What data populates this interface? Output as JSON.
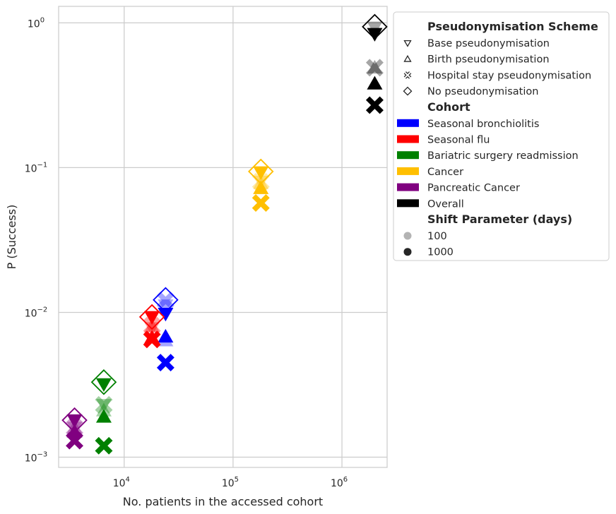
{
  "chart_data": {
    "type": "scatter",
    "title": "",
    "xlabel": "No. patients in the accessed cohort",
    "ylabel": "P (Success)",
    "x_scale": "log",
    "y_scale": "log",
    "xlim": [
      2500,
      2600000
    ],
    "ylim": [
      0.00085,
      1.3
    ],
    "grid": true,
    "x_ticks": [
      {
        "value": 10000,
        "base": "10",
        "exp": "4"
      },
      {
        "value": 100000,
        "base": "10",
        "exp": "5"
      },
      {
        "value": 1000000,
        "base": "10",
        "exp": "6"
      }
    ],
    "y_ticks": [
      {
        "value": 0.001,
        "base": "10",
        "exp": "−3"
      },
      {
        "value": 0.01,
        "base": "10",
        "exp": "−2"
      },
      {
        "value": 0.1,
        "base": "10",
        "exp": "−1"
      },
      {
        "value": 1,
        "base": "10",
        "exp": "0"
      }
    ],
    "legend_placement": "outside right",
    "legend": {
      "scheme_title": "Pseudonymisation Scheme",
      "schemes": [
        {
          "key": "base",
          "label": "Base pseudonymisation",
          "marker": "triangle-down"
        },
        {
          "key": "birth",
          "label": "Birth pseudonymisation",
          "marker": "triangle-up"
        },
        {
          "key": "hospital",
          "label": "Hospital stay pseudonymisation",
          "marker": "x"
        },
        {
          "key": "none",
          "label": "No pseudonymisation",
          "marker": "diamond"
        }
      ],
      "cohort_title": "Cohort",
      "shift_title": "Shift Parameter (days)",
      "shifts": [
        {
          "label": "100",
          "opacity": 0.35
        },
        {
          "label": "1000",
          "opacity": 1.0
        }
      ]
    },
    "series": [
      {
        "name": "Seasonal bronchiolitis",
        "color": "#0000ff",
        "points": [
          {
            "scheme": "none",
            "x": 24000,
            "y": 0.0122
          },
          {
            "scheme": "base",
            "shift": "1000",
            "x": 24000,
            "y": 0.0098
          },
          {
            "scheme": "base",
            "shift": "100",
            "x": 24000,
            "y": 0.0112
          },
          {
            "scheme": "birth",
            "shift": "1000",
            "x": 24000,
            "y": 0.0068
          },
          {
            "scheme": "birth",
            "shift": "100",
            "x": 24000,
            "y": 0.0064
          },
          {
            "scheme": "hospital",
            "shift": "1000",
            "x": 24000,
            "y": 0.0045
          },
          {
            "scheme": "hospital",
            "shift": "100",
            "x": 24000,
            "y": 0.0121
          }
        ]
      },
      {
        "name": "Seasonal flu",
        "color": "#ff0000",
        "points": [
          {
            "scheme": "none",
            "x": 18000,
            "y": 0.0093
          },
          {
            "scheme": "base",
            "shift": "1000",
            "x": 18000,
            "y": 0.0093
          },
          {
            "scheme": "base",
            "shift": "100",
            "x": 18000,
            "y": 0.0078
          },
          {
            "scheme": "birth",
            "shift": "1000",
            "x": 18000,
            "y": 0.0067
          },
          {
            "scheme": "birth",
            "shift": "100",
            "x": 18000,
            "y": 0.008
          },
          {
            "scheme": "hospital",
            "shift": "1000",
            "x": 18000,
            "y": 0.0065
          },
          {
            "scheme": "hospital",
            "shift": "100",
            "x": 18000,
            "y": 0.0081
          }
        ]
      },
      {
        "name": "Bariatric surgery readmission",
        "color": "#008000",
        "points": [
          {
            "scheme": "none",
            "x": 6500,
            "y": 0.0033
          },
          {
            "scheme": "base",
            "shift": "1000",
            "x": 6500,
            "y": 0.0032
          },
          {
            "scheme": "base",
            "shift": "100",
            "x": 6500,
            "y": 0.0023
          },
          {
            "scheme": "birth",
            "shift": "1000",
            "x": 6500,
            "y": 0.0019
          },
          {
            "scheme": "birth",
            "shift": "100",
            "x": 6500,
            "y": 0.0021
          },
          {
            "scheme": "hospital",
            "shift": "1000",
            "x": 6500,
            "y": 0.0012
          },
          {
            "scheme": "hospital",
            "shift": "100",
            "x": 6500,
            "y": 0.0023
          }
        ]
      },
      {
        "name": "Cancer",
        "color": "#ffbf00",
        "points": [
          {
            "scheme": "none",
            "x": 180000,
            "y": 0.094
          },
          {
            "scheme": "base",
            "shift": "1000",
            "x": 180000,
            "y": 0.093
          },
          {
            "scheme": "base",
            "shift": "100",
            "x": 180000,
            "y": 0.08
          },
          {
            "scheme": "birth",
            "shift": "1000",
            "x": 180000,
            "y": 0.072
          },
          {
            "scheme": "birth",
            "shift": "100",
            "x": 180000,
            "y": 0.078
          },
          {
            "scheme": "hospital",
            "shift": "1000",
            "x": 180000,
            "y": 0.057
          },
          {
            "scheme": "hospital",
            "shift": "100",
            "x": 180000,
            "y": 0.08
          }
        ]
      },
      {
        "name": "Pancreatic Cancer",
        "color": "#800080",
        "points": [
          {
            "scheme": "none",
            "x": 3500,
            "y": 0.0018
          },
          {
            "scheme": "base",
            "shift": "1000",
            "x": 3500,
            "y": 0.0018
          },
          {
            "scheme": "base",
            "shift": "100",
            "x": 3500,
            "y": 0.0016
          },
          {
            "scheme": "birth",
            "shift": "1000",
            "x": 3500,
            "y": 0.0015
          },
          {
            "scheme": "birth",
            "shift": "100",
            "x": 3500,
            "y": 0.0016
          },
          {
            "scheme": "hospital",
            "shift": "1000",
            "x": 3500,
            "y": 0.0013
          },
          {
            "scheme": "hospital",
            "shift": "100",
            "x": 3500,
            "y": 0.0016
          }
        ]
      },
      {
        "name": "Overall",
        "color": "#000000",
        "points": [
          {
            "scheme": "none",
            "x": 2000000,
            "y": 0.94
          },
          {
            "scheme": "base",
            "shift": "1000",
            "x": 2000000,
            "y": 0.84
          },
          {
            "scheme": "base",
            "shift": "100",
            "x": 2000000,
            "y": 0.93
          },
          {
            "scheme": "birth",
            "shift": "1000",
            "x": 2000000,
            "y": 0.38
          },
          {
            "scheme": "birth",
            "shift": "100",
            "x": 2000000,
            "y": 0.49
          },
          {
            "scheme": "hospital",
            "shift": "1000",
            "x": 2000000,
            "y": 0.27
          },
          {
            "scheme": "hospital",
            "shift": "100",
            "x": 2000000,
            "y": 0.49
          }
        ]
      }
    ]
  }
}
